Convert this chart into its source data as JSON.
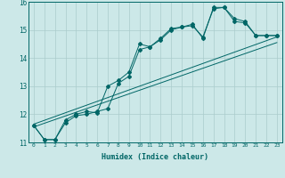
{
  "title": "",
  "xlabel": "Humidex (Indice chaleur)",
  "xlim": [
    -0.5,
    23.5
  ],
  "ylim": [
    11,
    16
  ],
  "xticks": [
    0,
    1,
    2,
    3,
    4,
    5,
    6,
    7,
    8,
    9,
    10,
    11,
    12,
    13,
    14,
    15,
    16,
    17,
    18,
    19,
    20,
    21,
    22,
    23
  ],
  "yticks": [
    11,
    12,
    13,
    14,
    15,
    16
  ],
  "background_color": "#cce8e8",
  "grid_color": "#aacccc",
  "line_color": "#006666",
  "trend1_y": [
    11.55,
    14.55
  ],
  "trend2_y": [
    11.65,
    14.75
  ],
  "line1_y": [
    11.6,
    11.1,
    11.1,
    11.8,
    12.0,
    12.1,
    12.05,
    13.0,
    13.2,
    13.5,
    14.5,
    14.4,
    14.7,
    15.05,
    15.1,
    15.2,
    14.7,
    15.8,
    15.8,
    15.4,
    15.3,
    14.8,
    14.8,
    14.8
  ],
  "line2_y": [
    11.6,
    11.1,
    11.1,
    11.7,
    11.95,
    12.0,
    12.1,
    12.2,
    13.1,
    13.35,
    14.3,
    14.4,
    14.65,
    15.0,
    15.1,
    15.15,
    14.75,
    15.75,
    15.8,
    15.3,
    15.25,
    14.8,
    14.8,
    14.8
  ]
}
